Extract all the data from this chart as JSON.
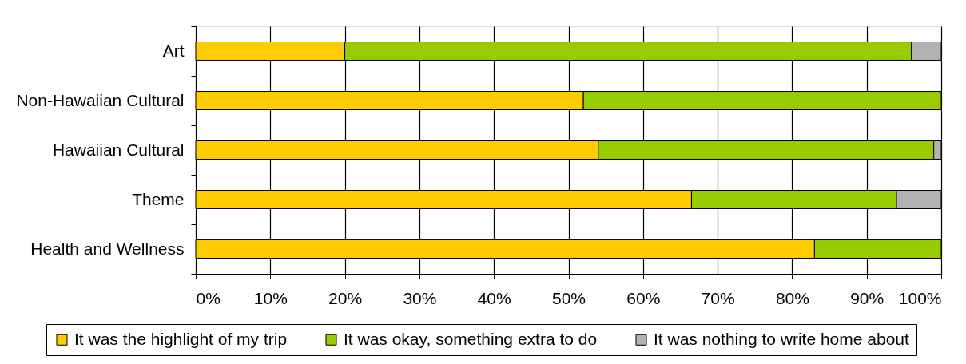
{
  "chart_data": {
    "type": "bar",
    "orientation": "horizontal",
    "stacked": true,
    "categories": [
      "Art",
      "Non-Hawaiian Cultural",
      "Hawaiian Cultural",
      "Theme",
      "Health and Wellness"
    ],
    "series": [
      {
        "name": "It was the highlight of my trip",
        "color": "#ffcc00",
        "values": [
          20,
          52,
          54,
          66.5,
          83
        ]
      },
      {
        "name": "It was okay, something extra to do",
        "color": "#99cc00",
        "values": [
          76,
          48,
          45,
          27.5,
          17
        ]
      },
      {
        "name": "It was nothing to write home about",
        "color": "#b2b2b2",
        "values": [
          4,
          null,
          1,
          6,
          null
        ]
      }
    ],
    "xlim": [
      0,
      100
    ],
    "xticks": [
      {
        "value": 0,
        "label": "0%"
      },
      {
        "value": 10,
        "label": "10%"
      },
      {
        "value": 20,
        "label": "20%"
      },
      {
        "value": 30,
        "label": "30%"
      },
      {
        "value": 40,
        "label": "40%"
      },
      {
        "value": 50,
        "label": "50%"
      },
      {
        "value": 60,
        "label": "60%"
      },
      {
        "value": 70,
        "label": "70%"
      },
      {
        "value": 80,
        "label": "80%"
      },
      {
        "value": 90,
        "label": "90%"
      },
      {
        "value": 100,
        "label": "100%"
      }
    ],
    "grid": "x",
    "legend": "bottom"
  }
}
